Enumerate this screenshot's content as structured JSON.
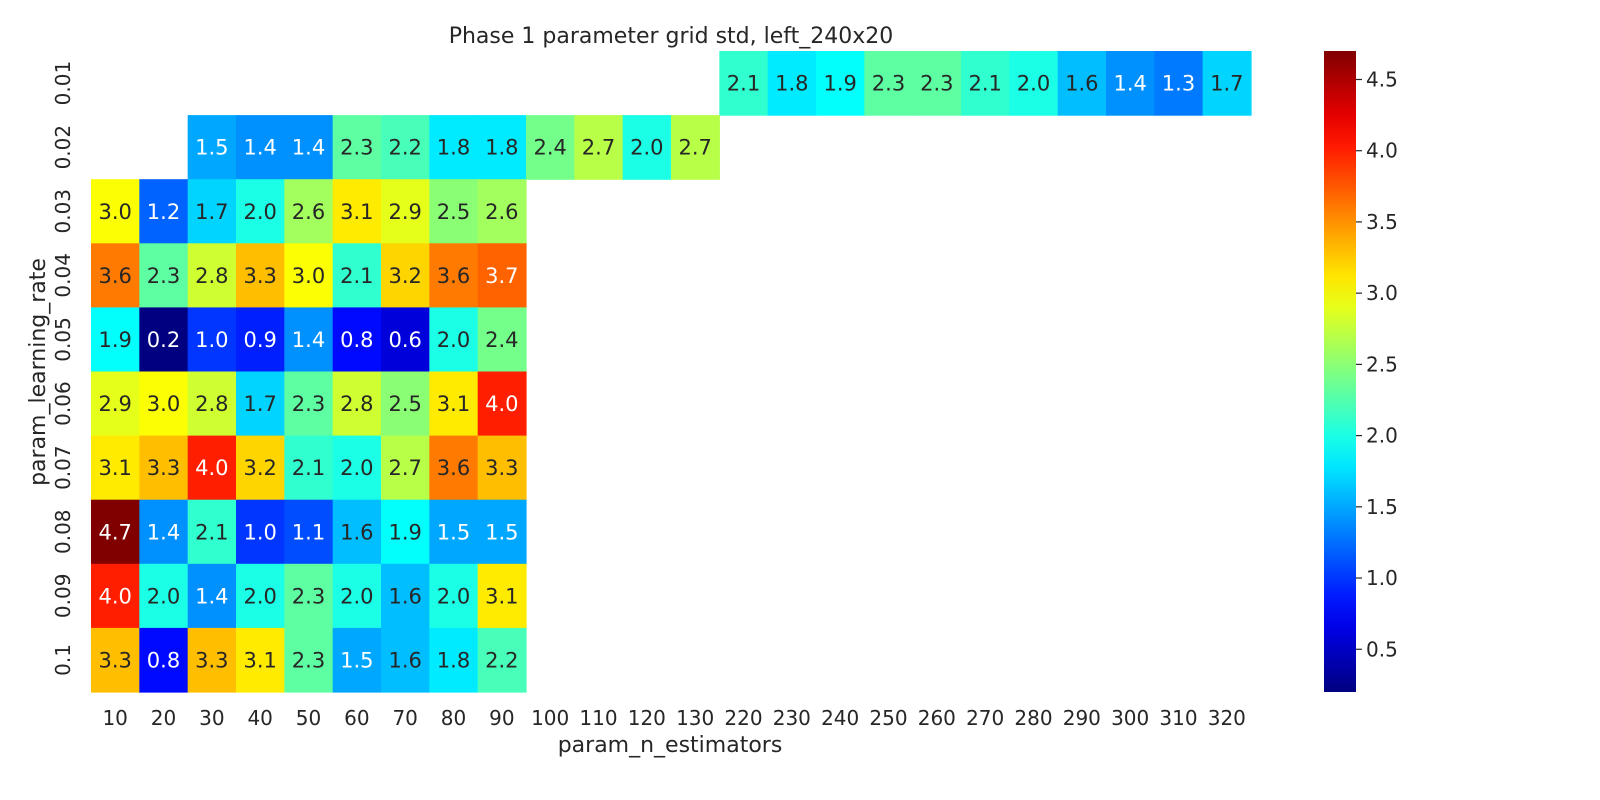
{
  "chart_data": {
    "type": "heatmap",
    "title": "Phase 1 parameter grid std, left_240x20",
    "xlabel": "param_n_estimators",
    "ylabel": "param_learning_rate",
    "x_categories": [
      "10",
      "20",
      "30",
      "40",
      "50",
      "60",
      "70",
      "80",
      "90",
      "100",
      "110",
      "120",
      "130",
      "220",
      "230",
      "240",
      "250",
      "260",
      "270",
      "280",
      "290",
      "300",
      "310",
      "320"
    ],
    "y_categories": [
      "0.01",
      "0.02",
      "0.03",
      "0.04",
      "0.05",
      "0.06",
      "0.07",
      "0.08",
      "0.09",
      "0.1"
    ],
    "values": [
      [
        null,
        null,
        null,
        null,
        null,
        null,
        null,
        null,
        null,
        null,
        null,
        null,
        null,
        2.1,
        1.8,
        1.9,
        2.3,
        2.3,
        2.1,
        2.0,
        1.6,
        1.4,
        1.3,
        1.7
      ],
      [
        null,
        null,
        1.5,
        1.4,
        1.4,
        2.3,
        2.2,
        1.8,
        1.8,
        2.4,
        2.7,
        2.0,
        2.7,
        null,
        null,
        null,
        null,
        null,
        null,
        null,
        null,
        null,
        null,
        null
      ],
      [
        3.0,
        1.2,
        1.7,
        2.0,
        2.6,
        3.1,
        2.9,
        2.5,
        2.6,
        null,
        null,
        null,
        null,
        null,
        null,
        null,
        null,
        null,
        null,
        null,
        null,
        null,
        null,
        null
      ],
      [
        3.6,
        2.3,
        2.8,
        3.3,
        3.0,
        2.1,
        3.2,
        3.6,
        3.7,
        null,
        null,
        null,
        null,
        null,
        null,
        null,
        null,
        null,
        null,
        null,
        null,
        null,
        null,
        null
      ],
      [
        1.9,
        0.2,
        1.0,
        0.9,
        1.4,
        0.8,
        0.6,
        2.0,
        2.4,
        null,
        null,
        null,
        null,
        null,
        null,
        null,
        null,
        null,
        null,
        null,
        null,
        null,
        null,
        null
      ],
      [
        2.9,
        3.0,
        2.8,
        1.7,
        2.3,
        2.8,
        2.5,
        3.1,
        4.0,
        null,
        null,
        null,
        null,
        null,
        null,
        null,
        null,
        null,
        null,
        null,
        null,
        null,
        null,
        null
      ],
      [
        3.1,
        3.3,
        4.0,
        3.2,
        2.1,
        2.0,
        2.7,
        3.6,
        3.3,
        null,
        null,
        null,
        null,
        null,
        null,
        null,
        null,
        null,
        null,
        null,
        null,
        null,
        null,
        null
      ],
      [
        4.7,
        1.4,
        2.1,
        1.0,
        1.1,
        1.6,
        1.9,
        1.5,
        1.5,
        null,
        null,
        null,
        null,
        null,
        null,
        null,
        null,
        null,
        null,
        null,
        null,
        null,
        null,
        null
      ],
      [
        4.0,
        2.0,
        1.4,
        2.0,
        2.3,
        2.0,
        1.6,
        2.0,
        3.1,
        null,
        null,
        null,
        null,
        null,
        null,
        null,
        null,
        null,
        null,
        null,
        null,
        null,
        null,
        null
      ],
      [
        3.3,
        0.8,
        3.3,
        3.1,
        2.3,
        1.5,
        1.6,
        1.8,
        2.2,
        null,
        null,
        null,
        null,
        null,
        null,
        null,
        null,
        null,
        null,
        null,
        null,
        null,
        null,
        null
      ]
    ],
    "colormap": "jet",
    "vmin": 0.2,
    "vmax": 4.7,
    "colorbar_ticks": [
      "0.5",
      "1.0",
      "1.5",
      "2.0",
      "2.5",
      "3.0",
      "3.5",
      "4.0",
      "4.5"
    ],
    "grid": false
  }
}
